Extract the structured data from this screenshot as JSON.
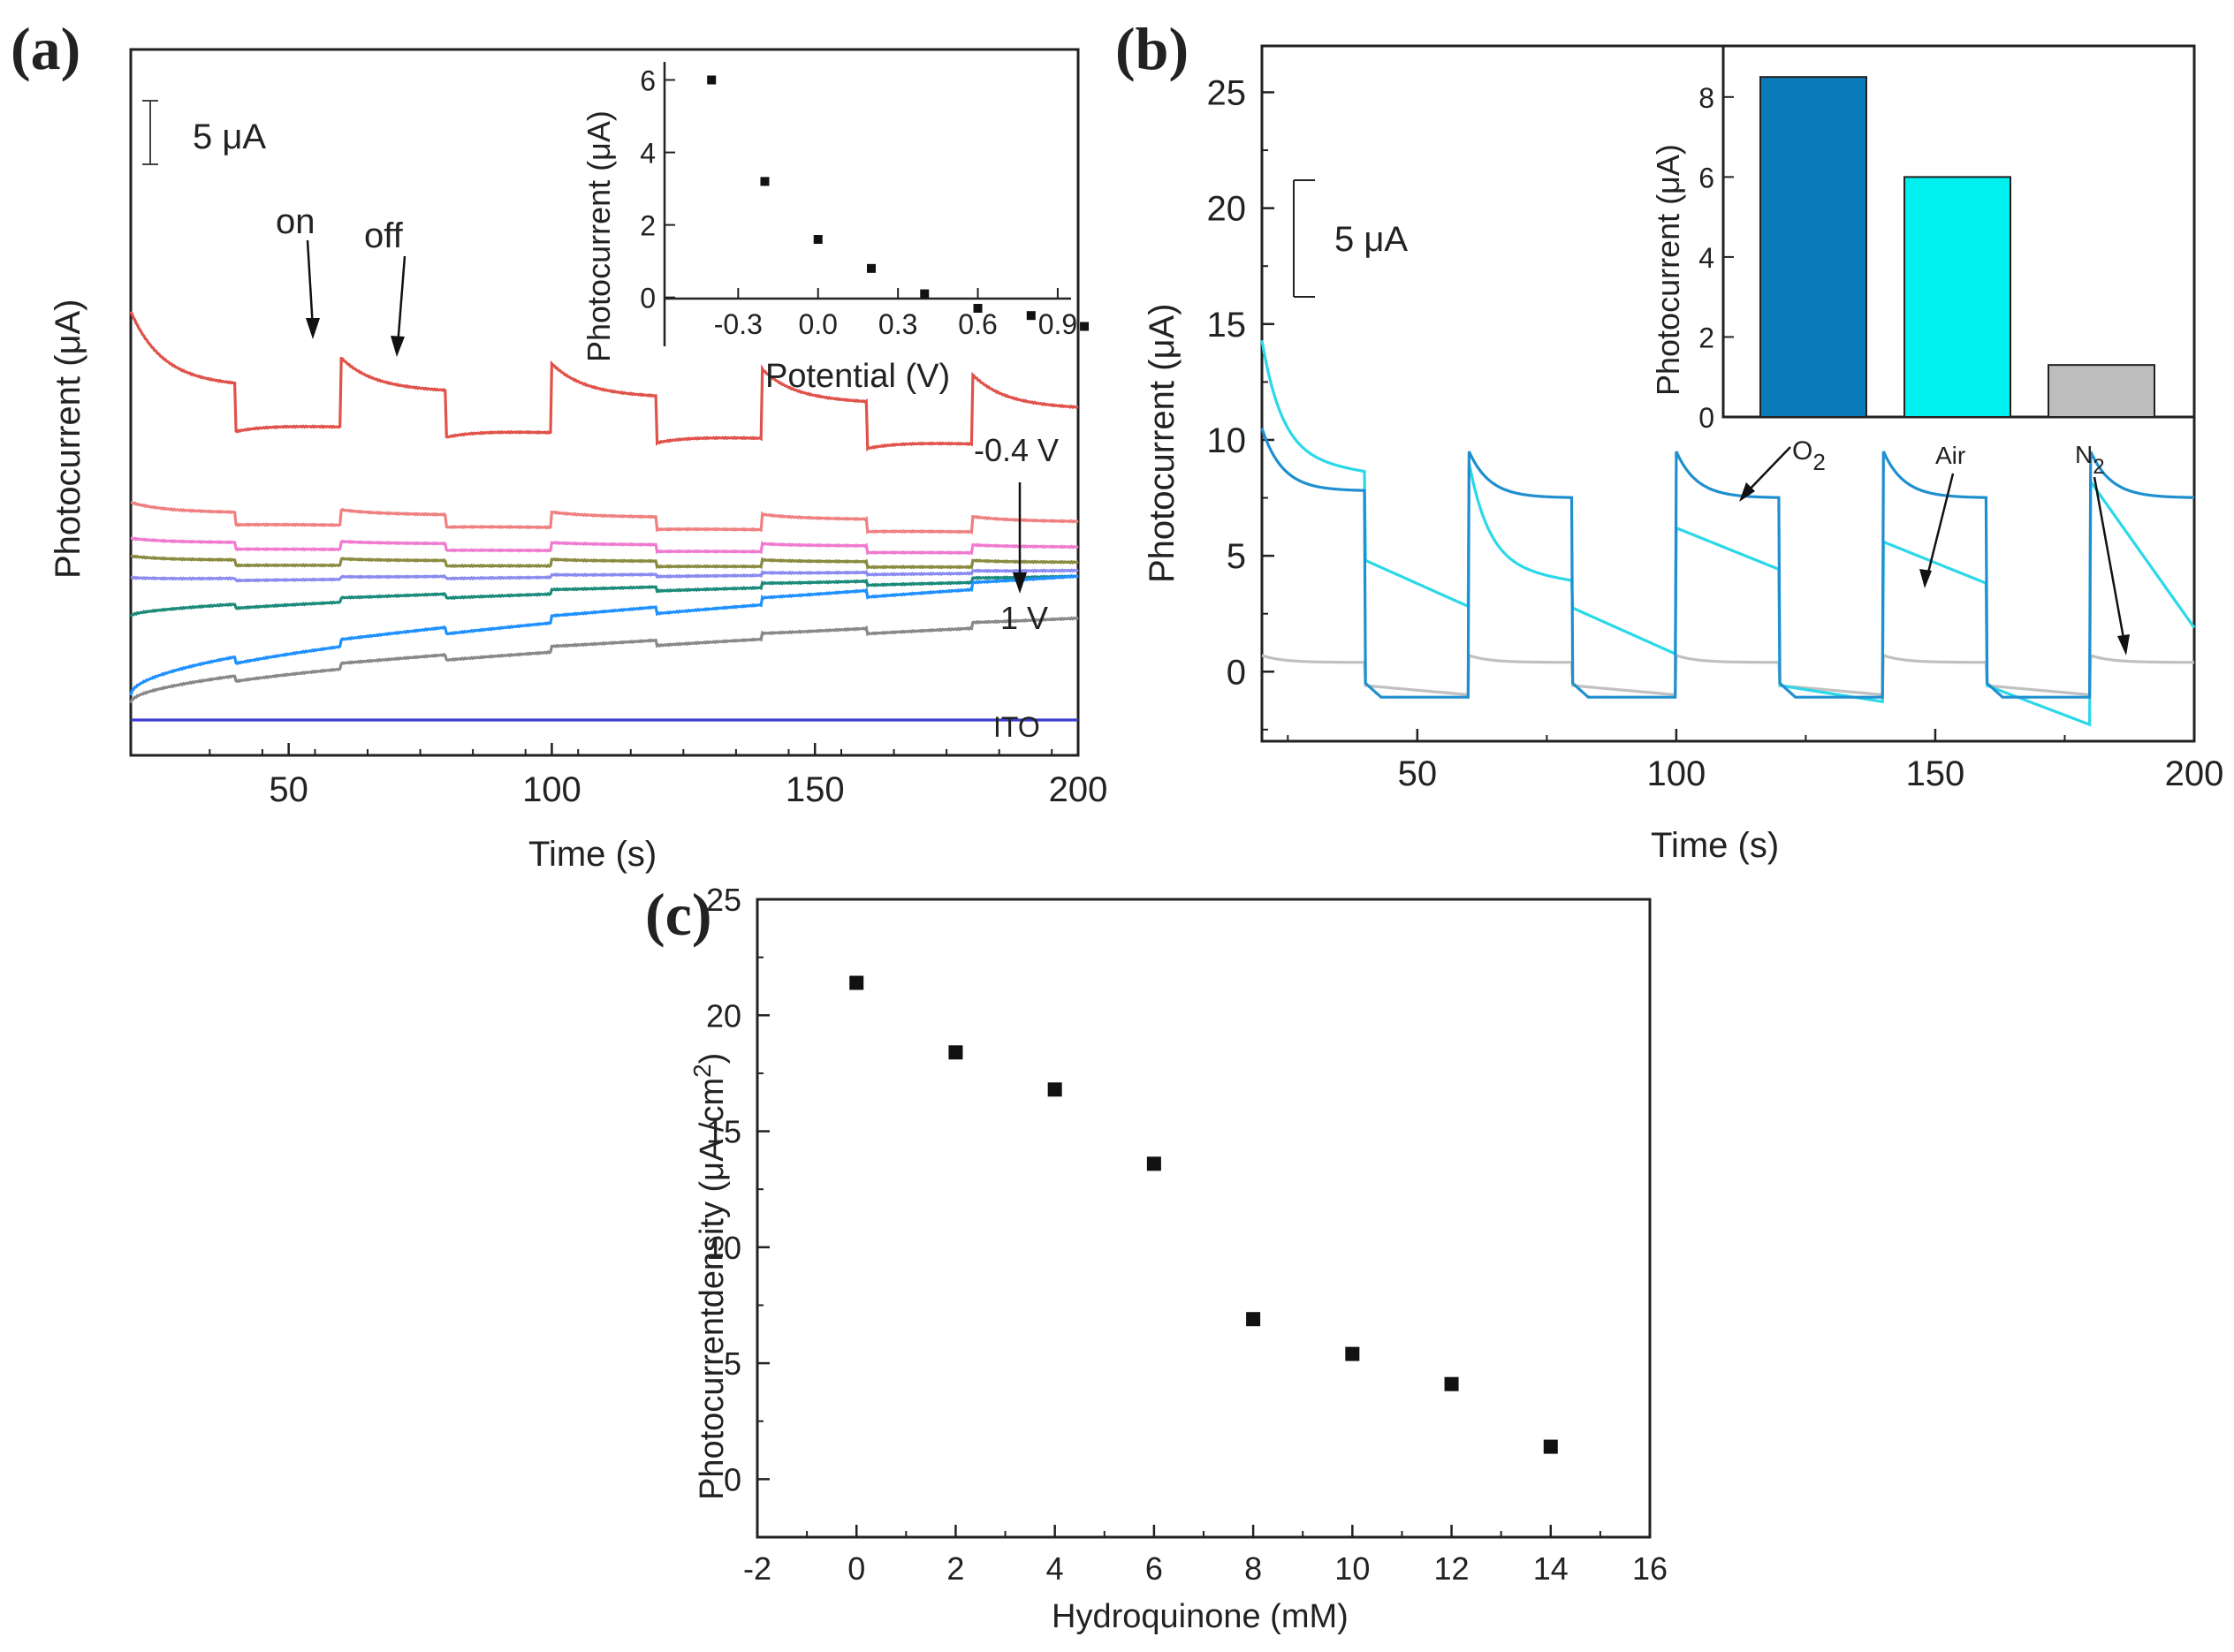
{
  "panels": {
    "a": {
      "label": "(a)"
    },
    "b": {
      "label": "(b)"
    },
    "c": {
      "label": "(c)"
    }
  },
  "chart_data": [
    {
      "id": "a",
      "type": "line",
      "xlabel": "Time (s)",
      "ylabel": "Photocurrent (μA)",
      "xlim": [
        20,
        200
      ],
      "xticks": [
        50,
        100,
        150,
        200
      ],
      "scale_bar": "5 μA",
      "annotations": {
        "on": "on",
        "off": "off",
        "top": "-0.4 V",
        "bottom": "1 V",
        "ito": "ITO"
      },
      "light_on_times": [
        20,
        60,
        100,
        140,
        180
      ],
      "light_off_times": [
        40,
        80,
        120,
        160
      ],
      "series": [
        {
          "color": "#e0524a",
          "offset_uA": 23.5,
          "step_uA": 3.0,
          "decay_uA": 4.0,
          "drift_uA": -2.0
        },
        {
          "color": "#f08080",
          "offset_uA": 15.5,
          "step_uA": 0.9,
          "decay_uA": 0.5,
          "drift_uA": -0.8
        },
        {
          "color": "#f07ad0",
          "offset_uA": 13.5,
          "step_uA": 0.5,
          "decay_uA": 0.2,
          "drift_uA": -0.4
        },
        {
          "color": "#8a8a40",
          "offset_uA": 12.2,
          "step_uA": 0.4,
          "decay_uA": 0.2,
          "drift_uA": -0.2
        },
        {
          "color": "#8a8af0",
          "offset_uA": 10.9,
          "step_uA": 0.15,
          "decay_uA": 0.1,
          "drift_uA": 0.7
        },
        {
          "color": "#1a8a7a",
          "offset_uA": 7.7,
          "step_uA": 0.3,
          "decay_uA": 0.1,
          "drift_uA": 3.3
        },
        {
          "color": "#1e90ff",
          "offset_uA": 1.3,
          "step_uA": 0.5,
          "decay_uA": 0.1,
          "drift_uA": 9.5
        },
        {
          "color": "#888888",
          "offset_uA": 0.8,
          "step_uA": 0.4,
          "decay_uA": 0.1,
          "drift_uA": 6.8
        },
        {
          "color": "#3b3bd0",
          "offset_uA": 0.0,
          "step_uA": 0.0,
          "decay_uA": 0.0,
          "drift_uA": 0.0
        }
      ],
      "inset": {
        "type": "scatter",
        "xlabel": "Potential (V)",
        "ylabel": "Photocurrent (μA)",
        "xlim": [
          -0.55,
          0.95
        ],
        "ylim": [
          -1.3,
          6.5
        ],
        "xticks": [
          "-0.3",
          "0.0",
          "0.3",
          "0.6",
          "0.9"
        ],
        "yticks": [
          "0",
          "2",
          "4",
          "6"
        ],
        "points": [
          {
            "x": -0.4,
            "y": 6.0
          },
          {
            "x": -0.2,
            "y": 3.2
          },
          {
            "x": 0.0,
            "y": 1.6
          },
          {
            "x": 0.2,
            "y": 0.8
          },
          {
            "x": 0.4,
            "y": 0.1
          },
          {
            "x": 0.6,
            "y": -0.3
          },
          {
            "x": 0.8,
            "y": -0.5
          },
          {
            "x": 1.0,
            "y": -0.8
          }
        ]
      }
    },
    {
      "id": "b",
      "type": "line",
      "xlabel": "Time (s)",
      "ylabel": "Photocurrent (μA)",
      "xlim": [
        20,
        200
      ],
      "ylim": [
        -3,
        27
      ],
      "xticks": [
        50,
        100,
        150,
        200
      ],
      "yticks": [
        0,
        5,
        10,
        15,
        20,
        25
      ],
      "scale_bar": "5 μA",
      "light_on_times": [
        20,
        60,
        100,
        140,
        180
      ],
      "light_off_times": [
        40,
        80,
        120,
        160
      ],
      "series": [
        {
          "name": "O2",
          "color": "#1f8fd0",
          "on_peak": 9.5,
          "on_end": 7.5,
          "off_start": -0.5,
          "off_end": -1.1
        },
        {
          "name": "Air",
          "color": "#2ad8e8",
          "on_peak": 9.0,
          "on_end": 4.5,
          "off_start": 4.8,
          "off_end": 2.8
        },
        {
          "name": "N2",
          "color": "#c0c0c0",
          "on_peak": 0.7,
          "on_end": 0.4,
          "off_start": -0.6,
          "off_end": -1.0
        }
      ],
      "annotations": {
        "o2": "O",
        "o2_sub": "2",
        "air": "Air",
        "n2": "N",
        "n2_sub": "2"
      },
      "inset": {
        "type": "bar",
        "ylabel": "Photocurrent (μA)",
        "ylim": [
          0,
          9.1
        ],
        "yticks": [
          "0",
          "2",
          "4",
          "6",
          "8"
        ],
        "categories": [
          "O2",
          "Air",
          "N2"
        ],
        "values": [
          8.5,
          6.0,
          1.3
        ],
        "colors": [
          "#0a7ab8",
          "#00f0f0",
          "#bdbdbd"
        ]
      }
    },
    {
      "id": "c",
      "type": "scatter",
      "xlabel": "Hydroquinone (mM)",
      "ylabel": "Photocurrentdensity (μA /cm",
      "ylabel_sup": "2",
      "ylabel_end": ")",
      "xlim": [
        -2,
        16
      ],
      "ylim": [
        -2.5,
        25
      ],
      "xticks": [
        "-2",
        "0",
        "2",
        "4",
        "6",
        "8",
        "10",
        "12",
        "14",
        "16"
      ],
      "yticks": [
        "0",
        "5",
        "10",
        "15",
        "20",
        "25"
      ],
      "points": [
        {
          "x": 0,
          "y": 21.4
        },
        {
          "x": 2,
          "y": 18.4
        },
        {
          "x": 4,
          "y": 16.8
        },
        {
          "x": 6,
          "y": 13.6
        },
        {
          "x": 8,
          "y": 6.9
        },
        {
          "x": 10,
          "y": 5.4
        },
        {
          "x": 12,
          "y": 4.1
        },
        {
          "x": 14,
          "y": 1.4
        }
      ]
    }
  ]
}
